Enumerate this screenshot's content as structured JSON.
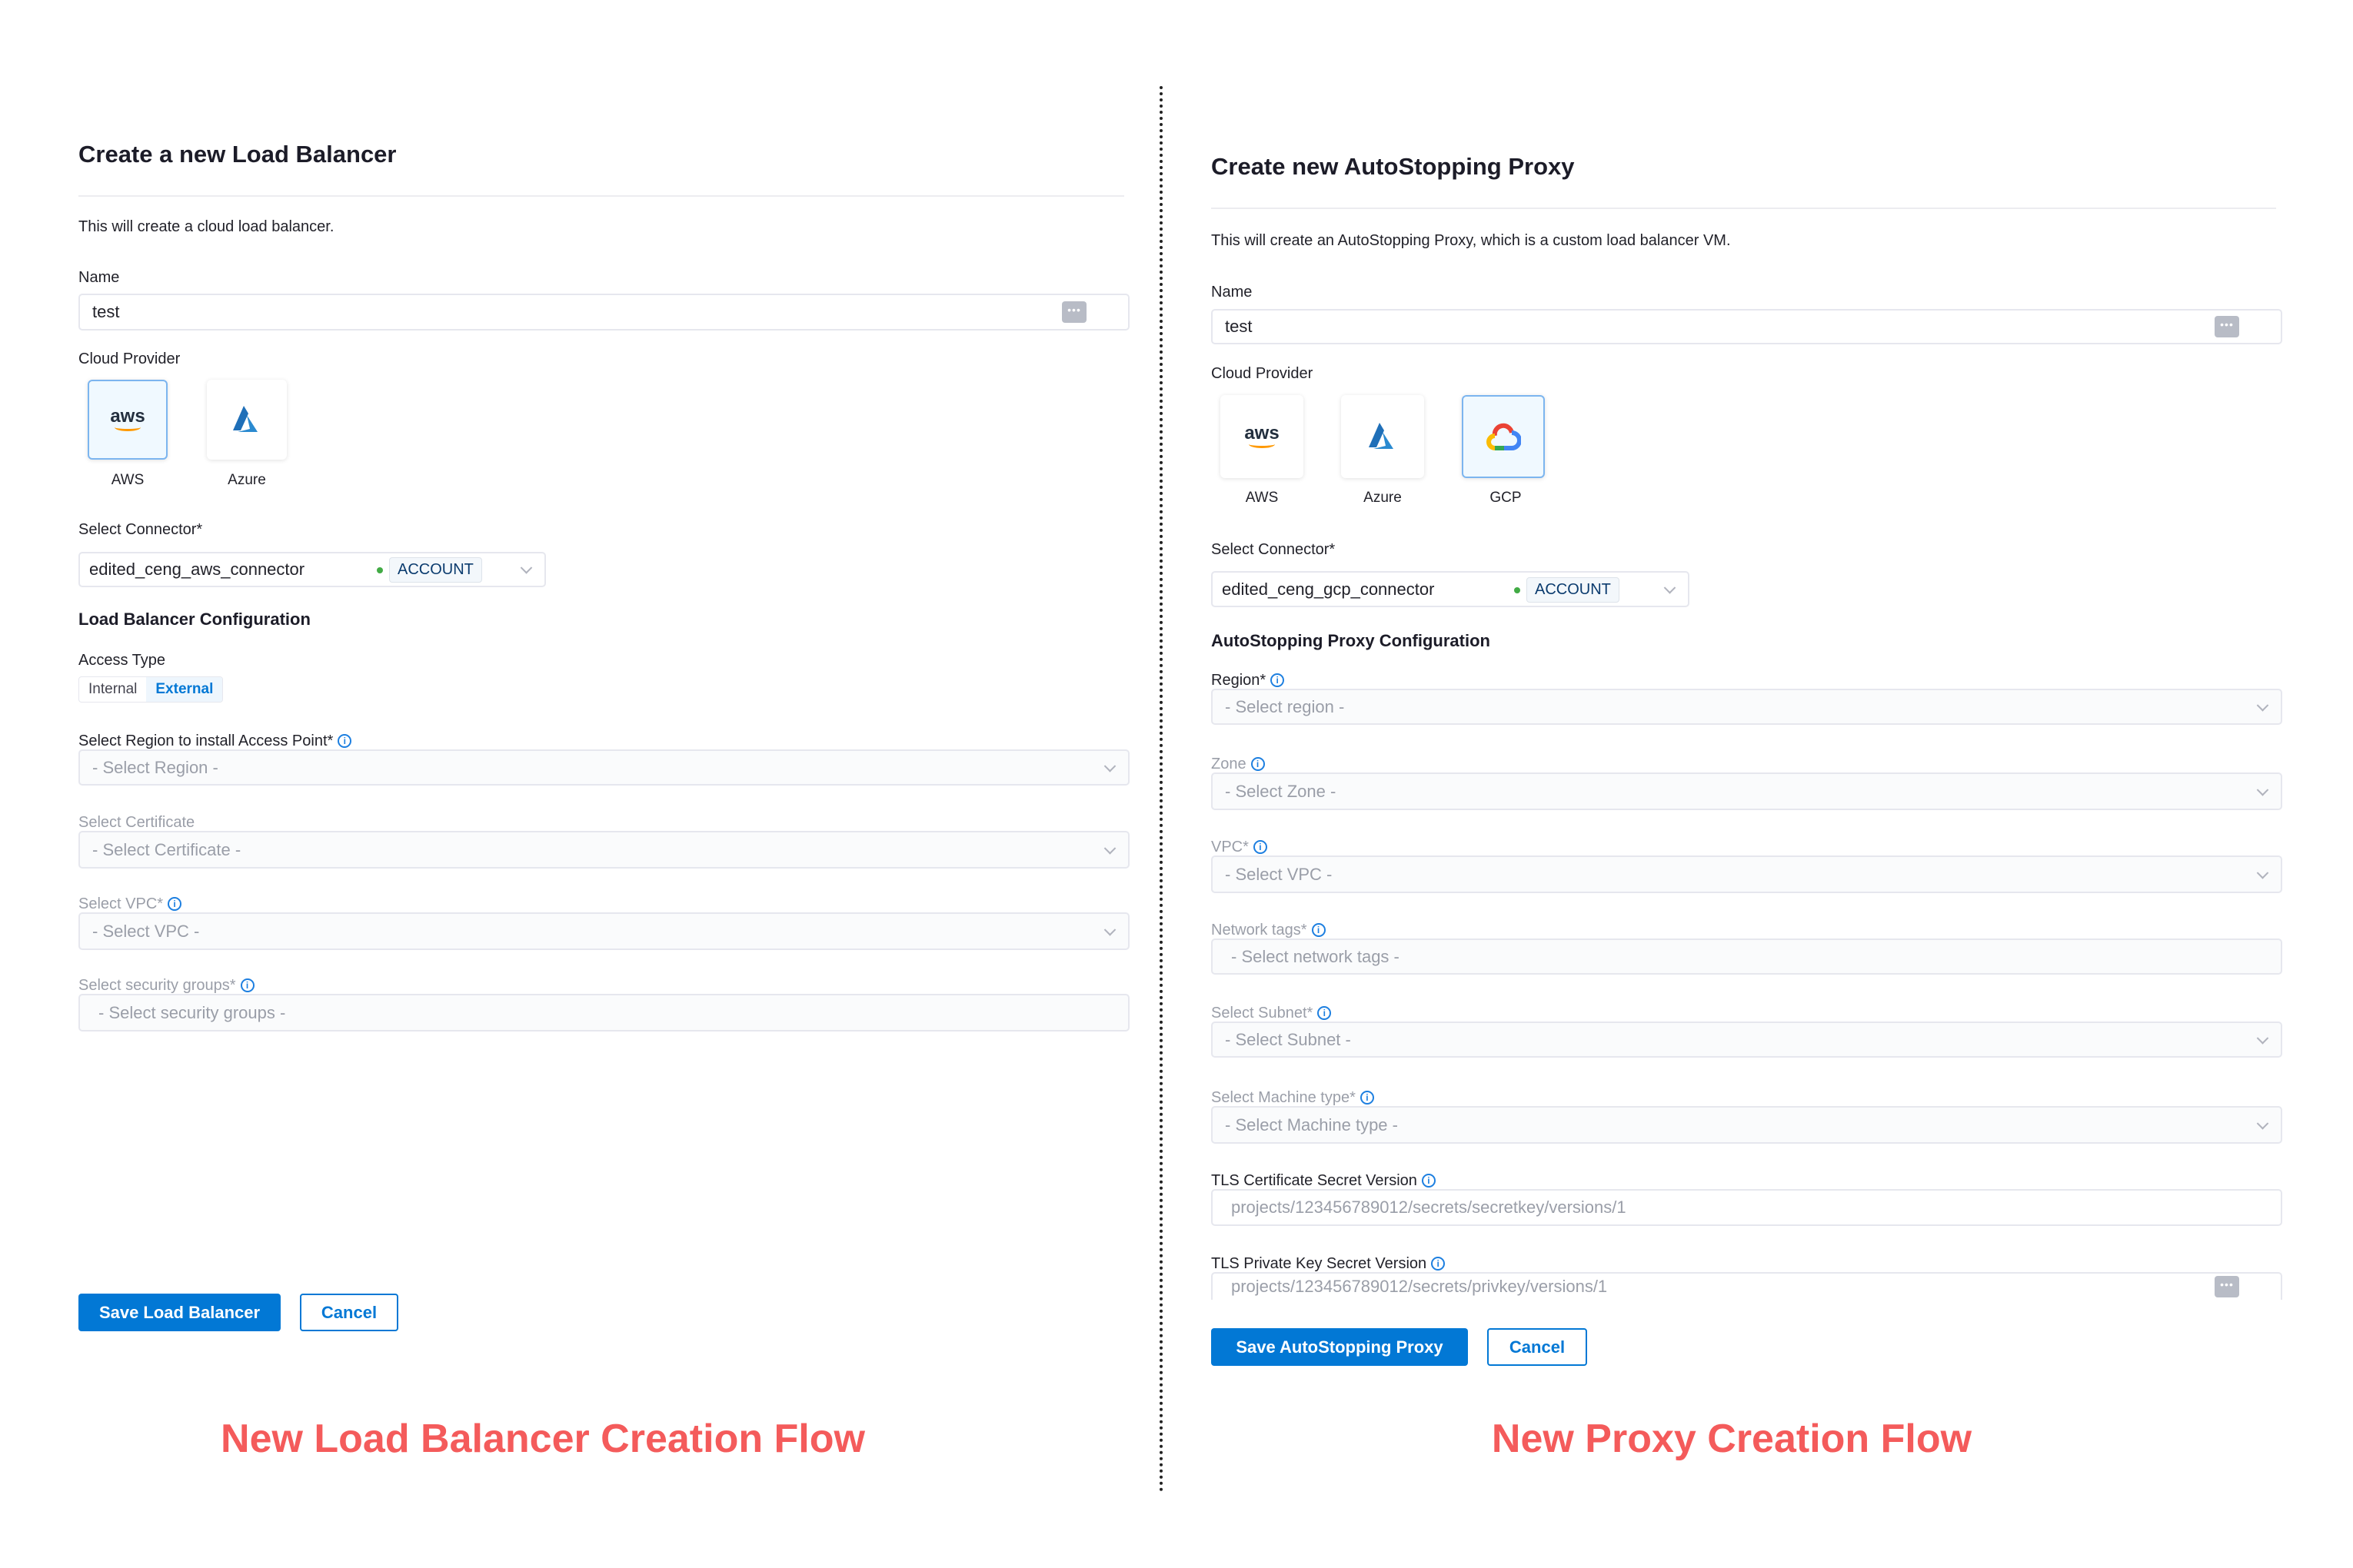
{
  "left": {
    "title": "Create a new Load Balancer",
    "description": "This will create a cloud load balancer.",
    "name_label": "Name",
    "name_value": "test",
    "cloud_provider_label": "Cloud Provider",
    "providers": [
      {
        "label": "AWS",
        "icon": "aws-logo",
        "selected": true
      },
      {
        "label": "Azure",
        "icon": "azure-logo",
        "selected": false
      }
    ],
    "connector_label": "Select Connector*",
    "connector_value": "edited_ceng_aws_connector",
    "connector_badge": "ACCOUNT",
    "config_heading": "Load Balancer Configuration",
    "access_type_label": "Access Type",
    "access_types": [
      "Internal",
      "External"
    ],
    "access_type_selected": "External",
    "fields": [
      {
        "label": "Select Region to install Access Point*",
        "placeholder": "- Select Region -",
        "info": true,
        "dropdown": true,
        "enabled": true
      },
      {
        "label": "Select Certificate",
        "placeholder": "- Select Certificate -",
        "info": false,
        "dropdown": true,
        "enabled": false
      },
      {
        "label": "Select VPC*",
        "placeholder": "- Select VPC -",
        "info": true,
        "dropdown": true,
        "enabled": false
      },
      {
        "label": "Select security groups*",
        "placeholder": "- Select security groups -",
        "info": true,
        "dropdown": false,
        "enabled": false
      }
    ],
    "save_label": "Save Load Balancer",
    "cancel_label": "Cancel",
    "caption": "New Load Balancer Creation Flow"
  },
  "right": {
    "title": "Create new AutoStopping Proxy",
    "description": "This will create an AutoStopping Proxy, which is a custom load balancer VM.",
    "name_label": "Name",
    "name_value": "test",
    "cloud_provider_label": "Cloud Provider",
    "providers": [
      {
        "label": "AWS",
        "icon": "aws-logo",
        "selected": false
      },
      {
        "label": "Azure",
        "icon": "azure-logo",
        "selected": false
      },
      {
        "label": "GCP",
        "icon": "gcp-logo",
        "selected": true
      }
    ],
    "connector_label": "Select Connector*",
    "connector_value": "edited_ceng_gcp_connector",
    "connector_badge": "ACCOUNT",
    "config_heading": "AutoStopping Proxy Configuration",
    "fields": [
      {
        "label": "Region*",
        "placeholder": "- Select region -",
        "info": true,
        "dropdown": true,
        "enabled": true
      },
      {
        "label": "Zone",
        "placeholder": "- Select Zone -",
        "info": true,
        "dropdown": true,
        "enabled": false
      },
      {
        "label": "VPC*",
        "placeholder": "- Select VPC -",
        "info": true,
        "dropdown": true,
        "enabled": false
      },
      {
        "label": "Network tags*",
        "placeholder": "- Select network tags -",
        "info": true,
        "dropdown": false,
        "enabled": false
      },
      {
        "label": "Select Subnet*",
        "placeholder": "- Select Subnet -",
        "info": true,
        "dropdown": true,
        "enabled": false
      },
      {
        "label": "Select Machine type*",
        "placeholder": "- Select Machine type -",
        "info": true,
        "dropdown": true,
        "enabled": false
      },
      {
        "label": "TLS Certificate Secret Version",
        "placeholder": "projects/123456789012/secrets/secretkey/versions/1",
        "info": true,
        "dropdown": false,
        "enabled": true,
        "text": true
      },
      {
        "label": "TLS Private Key Secret Version",
        "placeholder": "projects/123456789012/secrets/privkey/versions/1",
        "info": true,
        "dropdown": false,
        "enabled": true,
        "text": true,
        "dots": true
      }
    ],
    "save_label": "Save AutoStopping Proxy",
    "cancel_label": "Cancel",
    "caption": "New Proxy Creation Flow"
  },
  "colors": {
    "primary": "#0278d5",
    "caption": "#f45b5b",
    "status_green": "#42ab45"
  }
}
